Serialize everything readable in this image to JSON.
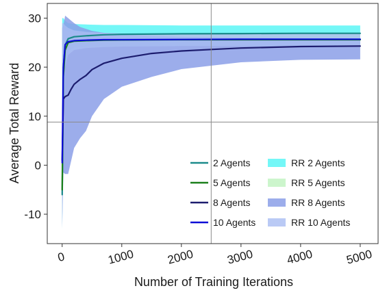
{
  "chart_data": {
    "type": "line",
    "xlabel": "Number of Training Iterations",
    "ylabel": "Average Total Reward",
    "xlim": [
      -250,
      5300
    ],
    "ylim": [
      -16,
      33
    ],
    "xticks": [
      0,
      1000,
      2000,
      3000,
      4000,
      5000
    ],
    "xtick_labels": [
      "0",
      "1000",
      "2000",
      "3000",
      "4000",
      "5000"
    ],
    "xtick_rotation_deg": -15,
    "yticks": [
      -10,
      0,
      10,
      20,
      30
    ],
    "ytick_labels": [
      "-10",
      "0",
      "10",
      "20",
      "30"
    ],
    "grid": false,
    "reference_lines": {
      "x": 2500,
      "y": 8.8
    },
    "legend_position": "bottom-right",
    "legend_columns": 2,
    "series": [
      {
        "name": "2 Agents",
        "color": "#1a8a8a",
        "x": [
          0,
          20,
          50,
          100,
          200,
          400,
          700,
          1000,
          2000,
          3000,
          4000,
          5000
        ],
        "y": [
          -6,
          20,
          24.5,
          25.8,
          26.2,
          26.4,
          26.6,
          26.7,
          26.8,
          26.85,
          26.9,
          26.9
        ]
      },
      {
        "name": "5 Agents",
        "color": "#1a7f1a",
        "x": [
          0,
          20,
          50,
          100,
          200,
          400,
          700,
          1000,
          2000,
          3000,
          4000,
          5000
        ],
        "y": [
          -5,
          18,
          23.5,
          25.0,
          25.3,
          25.4,
          25.5,
          25.55,
          25.6,
          25.6,
          25.6,
          25.6
        ]
      },
      {
        "name": "8 Agents",
        "color": "#1c1c6e",
        "x": [
          0,
          20,
          50,
          100,
          150,
          200,
          300,
          400,
          500,
          700,
          1000,
          1500,
          2000,
          2500,
          3000,
          4000,
          5000
        ],
        "y": [
          1,
          13.5,
          14.0,
          14.3,
          15.5,
          16.5,
          17.5,
          18.3,
          19.5,
          20.8,
          21.8,
          22.8,
          23.3,
          23.6,
          23.9,
          24.2,
          24.3
        ]
      },
      {
        "name": "10 Agents",
        "color": "#0d0dd6",
        "x": [
          0,
          20,
          50,
          100,
          200,
          400,
          700,
          1000,
          2000,
          3000,
          4000,
          5000
        ],
        "y": [
          0.5,
          20,
          24.6,
          25.2,
          25.4,
          25.5,
          25.6,
          25.6,
          25.65,
          25.7,
          25.7,
          25.7
        ]
      }
    ],
    "bands": [
      {
        "name": "RR 2 Agents",
        "color": "#45f4f4",
        "opacity": 0.75,
        "x": [
          0,
          20,
          50,
          100,
          200,
          400,
          700,
          1000,
          2000,
          3000,
          4000,
          5000
        ],
        "upper": [
          30,
          30,
          29.5,
          29,
          28.8,
          28.7,
          28.6,
          28.6,
          28.5,
          28.5,
          28.5,
          28.5
        ],
        "lower": [
          -13,
          5,
          20,
          23.3,
          24,
          24.2,
          24.3,
          24.3,
          24.4,
          24.4,
          24.4,
          24.4
        ]
      },
      {
        "name": "RR 5 Agents",
        "color": "#bff2bf",
        "opacity": 0.8,
        "x": [
          0,
          20,
          50,
          100,
          200,
          400,
          700,
          1000,
          2000,
          3000,
          4000,
          5000
        ],
        "upper": [
          28,
          28,
          27.5,
          27.2,
          27.0,
          26.9,
          26.9,
          26.8,
          26.8,
          26.8,
          26.8,
          26.8
        ],
        "lower": [
          -11,
          4,
          21,
          23.8,
          24.0,
          24.1,
          24.2,
          24.3,
          24.4,
          24.4,
          24.4,
          24.4
        ]
      },
      {
        "name": "RR 8 Agents",
        "color": "#8b9fe8",
        "opacity": 0.85,
        "x": [
          0,
          20,
          50,
          100,
          200,
          300,
          400,
          500,
          700,
          1000,
          1500,
          2000,
          3000,
          4000,
          5000
        ],
        "upper": [
          28,
          28.5,
          30.5,
          30.0,
          29.0,
          28.2,
          27.8,
          27.4,
          27.0,
          26.6,
          26.4,
          26.2,
          26.0,
          25.9,
          25.8
        ],
        "lower": [
          -13,
          -1.5,
          -1.8,
          -1.8,
          3.5,
          5.5,
          7.0,
          10.0,
          13.5,
          16.0,
          18.0,
          19.6,
          21.0,
          21.5,
          21.6
        ]
      },
      {
        "name": "RR 10 Agents",
        "color": "#a9bdf2",
        "opacity": 0.8,
        "x": [
          0,
          20,
          50,
          100,
          200,
          400,
          700,
          1000,
          2000,
          3000,
          4000,
          5000
        ],
        "upper": [
          29,
          29,
          28.5,
          28.0,
          27.5,
          27.2,
          27.0,
          26.9,
          26.8,
          26.8,
          26.8,
          26.8
        ],
        "lower": [
          -12,
          3,
          20,
          22.5,
          23.5,
          23.9,
          24.1,
          24.2,
          24.3,
          24.3,
          24.3,
          24.3
        ]
      }
    ]
  }
}
